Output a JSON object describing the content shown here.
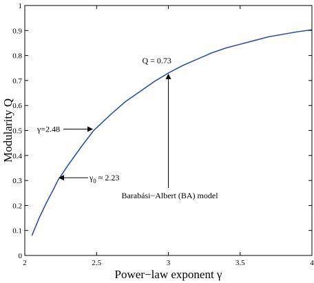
{
  "chart_data": {
    "type": "line",
    "xlabel": "Power−law exponent γ",
    "ylabel": "Modularity Q",
    "xlim": [
      2,
      4
    ],
    "ylim": [
      0,
      1
    ],
    "xticks": [
      "2",
      "2.5",
      "3",
      "3.5",
      "4"
    ],
    "yticks": [
      "0",
      "0.1",
      "0.2",
      "0.3",
      "0.4",
      "0.5",
      "0.6",
      "0.7",
      "0.8",
      "0.9",
      "1"
    ],
    "grid": false,
    "series": [
      {
        "color": "#2b4fa8",
        "x": [
          2.05,
          2.1,
          2.15,
          2.2,
          2.23,
          2.3,
          2.4,
          2.48,
          2.6,
          2.7,
          2.8,
          2.9,
          3.0,
          3.1,
          3.2,
          3.3,
          3.4,
          3.5,
          3.6,
          3.7,
          3.8,
          3.9,
          4.0
        ],
        "y": [
          0.08,
          0.15,
          0.21,
          0.265,
          0.3,
          0.36,
          0.44,
          0.5,
          0.565,
          0.615,
          0.655,
          0.695,
          0.73,
          0.76,
          0.785,
          0.81,
          0.83,
          0.845,
          0.86,
          0.875,
          0.885,
          0.895,
          0.903
        ]
      }
    ],
    "annotations": [
      {
        "id": "gamma0",
        "label_main": "γ",
        "label_sub": "0",
        "label_rest": " ≈ 2.23",
        "point": [
          2.23,
          0.3
        ]
      },
      {
        "id": "gamma248",
        "label": "γ=2.48",
        "point": [
          2.48,
          0.5
        ]
      },
      {
        "id": "q073",
        "label": "Q = 0.73",
        "point": [
          3.0,
          0.73
        ]
      },
      {
        "id": "ba",
        "label": "Barabási−Albert (BA) model",
        "point": [
          3.0,
          0.73
        ]
      }
    ]
  }
}
